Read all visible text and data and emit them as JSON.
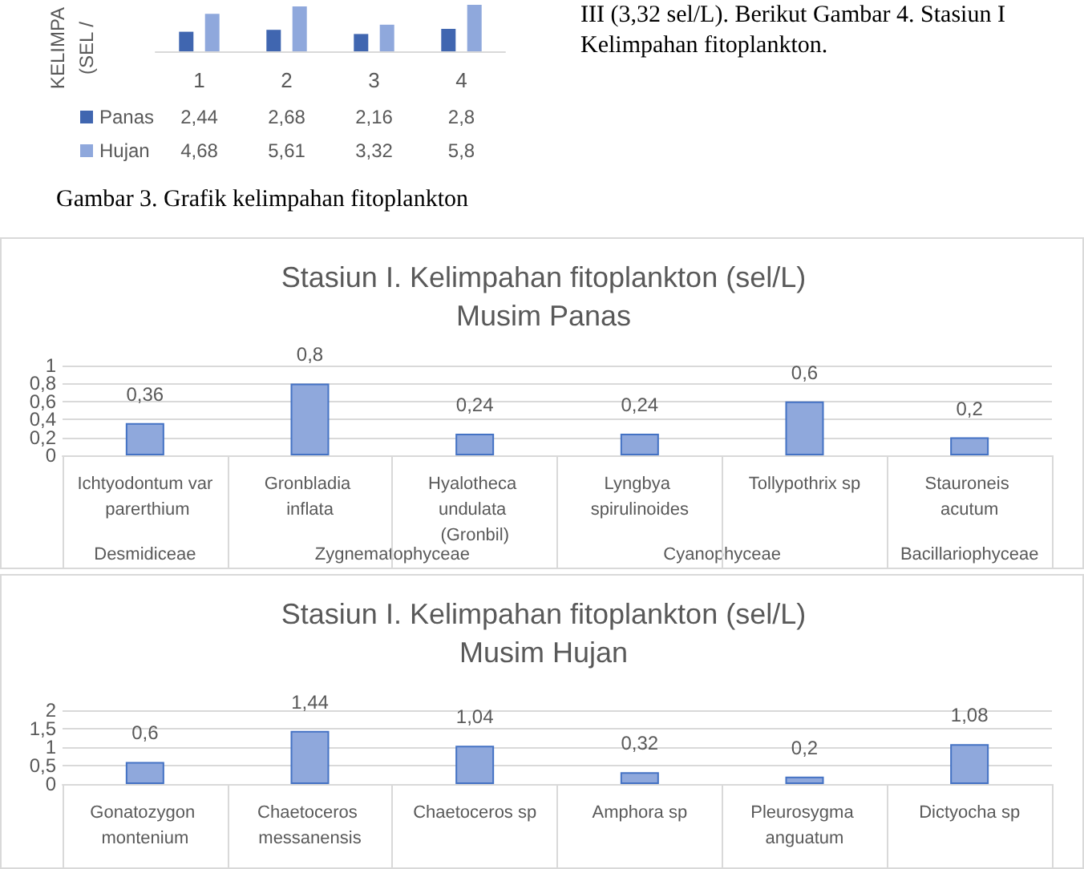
{
  "chart_data": [
    {
      "type": "bar",
      "ylabel": "KELIMPA\n(SEL /",
      "legend": "bottom",
      "categories": [
        "1",
        "2",
        "3",
        "4"
      ],
      "annotations": [
        "Gambar 3. Grafik kelimpahan fitoplankton",
        "III (3,32 sel/L). Berikut Gambar 4. Stasiun I Kelimpahan fitoplankton."
      ],
      "series": [
        {
          "name": "Panas",
          "color": "#4066b0",
          "values": [
            2.44,
            2.68,
            2.16,
            2.8
          ],
          "value_labels": [
            "2,44",
            "2,68",
            "2,16",
            "2,8"
          ]
        },
        {
          "name": "Hujan",
          "color": "#8fa8dc",
          "values": [
            4.68,
            5.61,
            3.32,
            5.8
          ],
          "value_labels": [
            "4,68",
            "5,61",
            "3,32",
            "5,8"
          ]
        }
      ]
    },
    {
      "type": "bar",
      "title": "Stasiun I. Kelimpahan fitoplankton (sel/L)",
      "subtitle": "Musim Panas",
      "grid": "y",
      "categories": [
        "Ichtyodontum var parerthium",
        "Gronbladia inflata",
        "Hyalotheca undulata (Gronbil)",
        "Lyngbya spirulinoides",
        "Tollypothrix sp",
        "Stauroneis acutum"
      ],
      "annotations": [
        "Desmidiceae",
        "Zygnematophyceae",
        "Cyanophyceae",
        "Bacillariophyceae"
      ],
      "ylim": [
        0,
        1
      ],
      "yticks": [
        0,
        {
          "value": 0.2,
          "label": "0,2"
        },
        {
          "value": 0.4,
          "label": "0,4"
        },
        {
          "value": 0.6,
          "label": "0,6"
        },
        {
          "value": 0.8,
          "label": "0,8"
        },
        1
      ],
      "series": [
        {
          "color": "#8fa8dc",
          "values": [
            0.36,
            0.8,
            0.24,
            0.24,
            0.6,
            0.2
          ],
          "value_labels": [
            "0,36",
            "0,8",
            "0,24",
            "0,24",
            "0,6",
            "0,2"
          ]
        }
      ]
    },
    {
      "type": "bar",
      "title": "Stasiun I. Kelimpahan fitoplankton (sel/L)",
      "subtitle": "Musim Hujan",
      "grid": "y",
      "categories": [
        "Gonatozygon montenium",
        "Chaetoceros messanensis",
        "Chaetoceros sp",
        "Amphora sp",
        "Pleurosygma anguatum",
        "Dictyocha sp"
      ],
      "ylim": [
        0,
        2
      ],
      "yticks": [
        0,
        {
          "value": 0.5,
          "label": "0,5"
        },
        1,
        {
          "value": 1.5,
          "label": "1,5"
        },
        2
      ],
      "series": [
        {
          "color": "#8fa8dc",
          "values": [
            0.6,
            1.44,
            1.04,
            0.32,
            0.2,
            1.08
          ],
          "value_labels": [
            "0,6",
            "1,44",
            "1,04",
            "0,32",
            "0,2",
            "1,08"
          ]
        }
      ]
    }
  ]
}
